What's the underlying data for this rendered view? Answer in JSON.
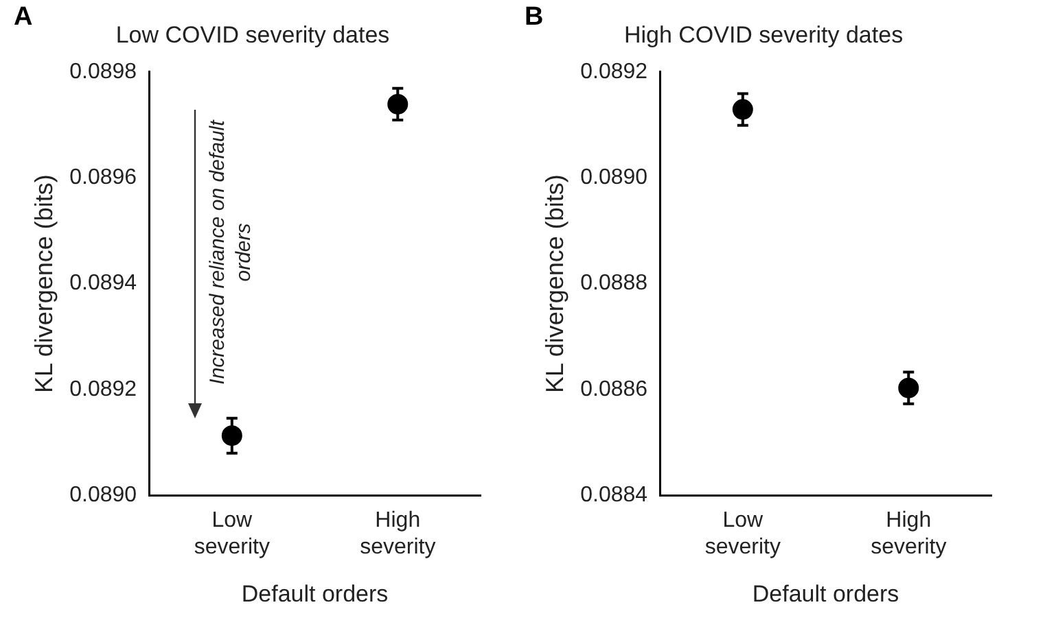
{
  "chart_data": [
    {
      "type": "scatter",
      "title": "Low COVID severity dates",
      "xlabel": "Default orders",
      "ylabel": "KL divergence (bits)",
      "categories": [
        "Low severity",
        "High severity"
      ],
      "series": [
        {
          "color": "#000000",
          "values": [
            0.089113,
            0.089739
          ],
          "errors": [
            3.3e-05,
            3e-05
          ]
        }
      ],
      "ylim": [
        0.089,
        0.0898
      ],
      "yticks": [
        {
          "value": 0.089,
          "label": "0.0890"
        },
        {
          "value": 0.0892,
          "label": "0.0892"
        },
        {
          "value": 0.0894,
          "label": "0.0894"
        },
        {
          "value": 0.0896,
          "label": "0.0896"
        },
        {
          "value": 0.0898,
          "label": "0.0898"
        }
      ],
      "annotations": [
        "A",
        "Increased reliance on default orders"
      ],
      "grid": false,
      "legend": false,
      "marker": "circle"
    },
    {
      "type": "scatter",
      "title": "High COVID severity dates",
      "xlabel": "Default orders",
      "ylabel": "KL divergence (bits)",
      "categories": [
        "Low severity",
        "High severity"
      ],
      "series": [
        {
          "color": "#000000",
          "values": [
            0.089129,
            0.088603
          ],
          "errors": [
            3e-05,
            3e-05
          ]
        }
      ],
      "ylim": [
        0.0884,
        0.0892
      ],
      "yticks": [
        {
          "value": 0.0884,
          "label": "0.0884"
        },
        {
          "value": 0.0886,
          "label": "0.0886"
        },
        {
          "value": 0.0888,
          "label": "0.0888"
        },
        {
          "value": 0.089,
          "label": "0.0890"
        },
        {
          "value": 0.0892,
          "label": "0.0892"
        }
      ],
      "annotations": [
        "B"
      ],
      "grid": false,
      "legend": false,
      "marker": "circle"
    }
  ]
}
